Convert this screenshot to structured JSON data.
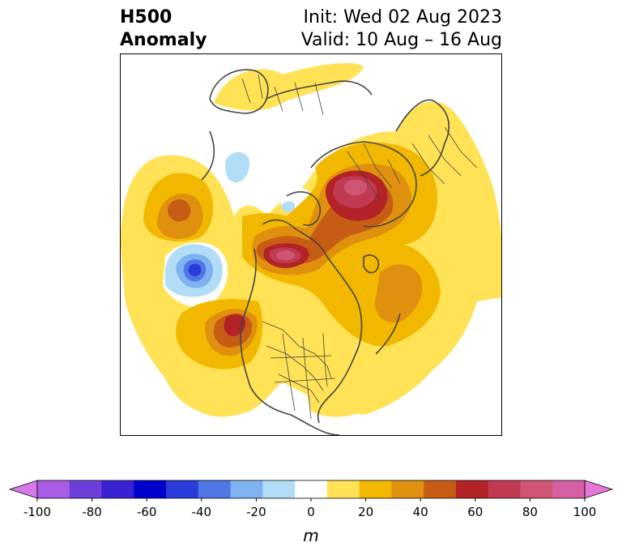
{
  "title": {
    "variable": "H500",
    "field": "Anomaly",
    "init": "Init: Wed 02 Aug 2023",
    "valid": "Valid: 10 Aug – 16 Aug"
  },
  "colorbar": {
    "unit": "m",
    "ticks": [
      "-100",
      "-80",
      "-60",
      "-40",
      "-20",
      "0",
      "20",
      "40",
      "60",
      "80",
      "100"
    ],
    "colors": [
      "#d57ae8",
      "#a85de4",
      "#6e3fd8",
      "#3a22d3",
      "#0000cc",
      "#2a3ddb",
      "#4f78e6",
      "#7fb2f0",
      "#b2ddf7",
      "#ffffff",
      "#ffe255",
      "#f2b800",
      "#e0900f",
      "#c75c14",
      "#b22226",
      "#c03a52",
      "#d05574",
      "#d760a4",
      "#e676d8"
    ],
    "extend": "both"
  },
  "map": {
    "projection": "north-polar-stereographic",
    "anomaly_centers": [
      {
        "region": "Barents Sea / northern Scandinavia",
        "sign": "positive",
        "peak": "60-70"
      },
      {
        "region": "Canadian Arctic",
        "sign": "positive",
        "peak": "60-70"
      },
      {
        "region": "Gulf of Alaska",
        "sign": "positive",
        "peak": "50-60"
      },
      {
        "region": "Bering Sea",
        "sign": "negative",
        "peak": "-50 to -40"
      },
      {
        "region": "North Pacific (central)",
        "sign": "positive",
        "peak": "30-40"
      },
      {
        "region": "Central Siberia",
        "sign": "negative",
        "peak": "-20 to -10"
      }
    ]
  }
}
